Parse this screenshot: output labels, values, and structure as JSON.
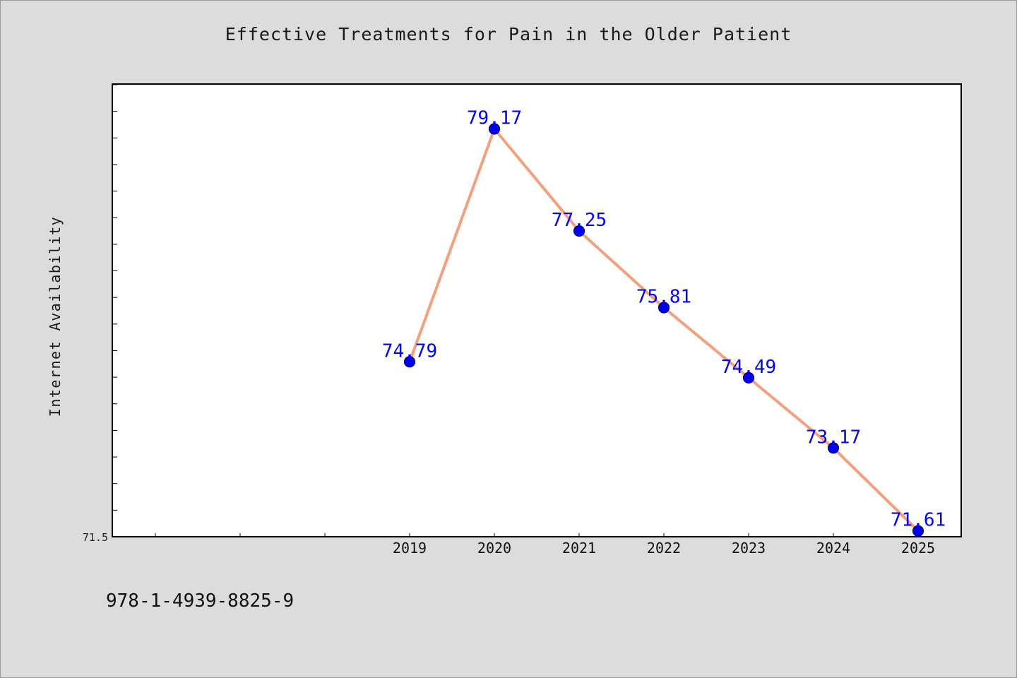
{
  "chart_data": {
    "type": "line",
    "title": "Effective Treatments for Pain in the Older Patient",
    "ylabel": "Internet Availability",
    "xlabel": "",
    "categories": [
      "2019",
      "2020",
      "2021",
      "2022",
      "2023",
      "2024",
      "2025"
    ],
    "series": [
      {
        "values": [
          74.79,
          79.17,
          77.25,
          75.81,
          74.49,
          73.17,
          71.61
        ]
      }
    ],
    "data_labels": [
      "74.79",
      "79.17",
      "77.25",
      "75.81",
      "74.49",
      "73.17",
      "71.61"
    ],
    "y_tick_labels": [
      "71.5"
    ],
    "ylim": [
      71.5,
      80.0
    ],
    "x_slot_count": 10,
    "grid": false,
    "legend": "none",
    "colors": {
      "line": "#f4a07e",
      "marker": "#0000ee",
      "label": "#0000ff"
    }
  },
  "footer": {
    "isbn": "978-1-4939-8825-9"
  }
}
